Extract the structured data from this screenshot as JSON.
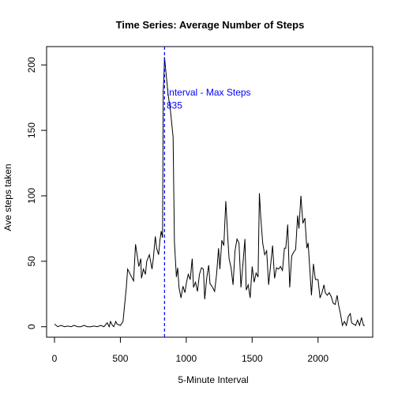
{
  "chart_data": {
    "type": "line",
    "title": "Time Series: Average Number of Steps",
    "xlabel": "5-Minute Interval",
    "ylabel": "Ave steps taken",
    "xlim": [
      -60,
      2415
    ],
    "ylim": [
      -8,
      214
    ],
    "x_ticks": [
      0,
      500,
      1000,
      1500,
      2000
    ],
    "y_ticks": [
      0,
      50,
      100,
      150,
      200
    ],
    "x_tick_labels": [
      "0",
      "500",
      "1000",
      "1500",
      "2000"
    ],
    "y_tick_labels": [
      "0",
      "50",
      "100",
      "150",
      "200"
    ],
    "grid": false,
    "series": [
      {
        "color": "#000000",
        "x": [
          0,
          25,
          50,
          75,
          100,
          125,
          150,
          175,
          200,
          225,
          250,
          275,
          300,
          325,
          350,
          375,
          400,
          415,
          425,
          440,
          450,
          465,
          475,
          500,
          520,
          545,
          555,
          600,
          615,
          640,
          655,
          660,
          675,
          690,
          700,
          720,
          740,
          750,
          765,
          775,
          790,
          800,
          810,
          820,
          825,
          830,
          835,
          845,
          855,
          860,
          880,
          895,
          900,
          910,
          925,
          935,
          945,
          960,
          975,
          990,
          1000,
          1015,
          1030,
          1045,
          1055,
          1070,
          1085,
          1100,
          1115,
          1130,
          1140,
          1155,
          1170,
          1180,
          1200,
          1215,
          1230,
          1245,
          1255,
          1270,
          1285,
          1300,
          1315,
          1325,
          1340,
          1355,
          1370,
          1385,
          1400,
          1415,
          1430,
          1445,
          1455,
          1470,
          1485,
          1500,
          1515,
          1530,
          1545,
          1555,
          1565,
          1580,
          1595,
          1610,
          1625,
          1640,
          1655,
          1670,
          1685,
          1700,
          1715,
          1730,
          1745,
          1755,
          1770,
          1785,
          1800,
          1815,
          1830,
          1845,
          1855,
          1870,
          1885,
          1900,
          1915,
          1925,
          1935,
          1950,
          1965,
          1980,
          2000,
          2015,
          2030,
          2045,
          2055,
          2070,
          2085,
          2100,
          2115,
          2130,
          2145,
          2155,
          2170,
          2185,
          2200,
          2215,
          2230,
          2245,
          2255,
          2270,
          2285,
          2300,
          2315,
          2330,
          2345,
          2355
        ],
        "y": [
          2,
          0,
          1,
          0,
          0.5,
          0,
          1,
          0,
          0,
          1,
          0,
          0,
          0.5,
          0,
          1,
          0,
          3,
          0,
          4,
          1,
          0,
          4,
          2,
          1,
          4,
          30,
          44,
          35,
          63,
          46,
          52,
          37,
          44,
          40,
          50,
          55,
          44,
          52,
          69,
          60,
          55,
          66,
          73,
          68,
          180,
          190,
          206,
          195,
          185,
          179,
          165,
          150,
          145,
          65,
          38,
          45,
          30,
          22,
          31,
          26,
          33,
          40,
          36,
          52,
          30,
          34,
          27,
          40,
          45,
          44,
          21,
          37,
          47,
          33,
          30,
          27,
          40,
          60,
          44,
          66,
          62,
          96,
          68,
          52,
          45,
          32,
          58,
          67,
          64,
          30,
          48,
          67,
          28,
          32,
          22,
          46,
          34,
          41,
          38,
          102,
          84,
          64,
          55,
          58,
          32,
          47,
          62,
          37,
          45,
          44,
          46,
          43,
          60,
          60,
          78,
          30,
          54,
          57,
          59,
          85,
          75,
          100,
          79,
          83,
          60,
          64,
          48,
          24,
          48,
          36,
          36,
          22,
          26,
          32,
          26,
          24,
          26,
          23,
          18,
          17,
          24,
          17,
          10,
          1,
          4,
          1,
          8,
          10,
          3,
          2,
          1,
          5,
          1,
          7,
          1,
          1
        ]
      }
    ],
    "annotations": [
      {
        "type": "vline",
        "x": 835,
        "color": "#0000ff",
        "style": "dashed"
      },
      {
        "type": "text",
        "text": "Interval - Max Steps",
        "x": 850,
        "y": 179,
        "color": "#0000ff"
      },
      {
        "type": "text",
        "text": "835",
        "x": 850,
        "y": 169,
        "color": "#0000ff"
      }
    ]
  }
}
